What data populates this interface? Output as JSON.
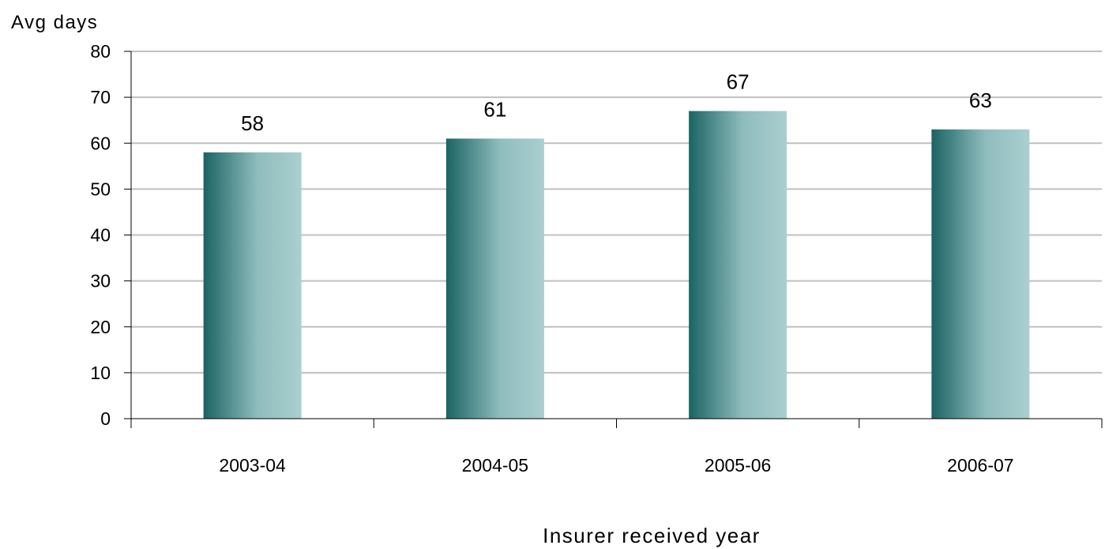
{
  "chart_data": {
    "type": "bar",
    "ylabel": "Avg days",
    "xlabel": "Insurer received year",
    "categories": [
      "2003-04",
      "2004-05",
      "2005-06",
      "2006-07"
    ],
    "values": [
      58,
      61,
      67,
      63
    ],
    "data_labels": [
      "58",
      "61",
      "67",
      "63"
    ],
    "ylim": [
      0,
      80
    ],
    "yticks": [
      0,
      10,
      20,
      30,
      40,
      50,
      60,
      70,
      80
    ],
    "grid": true,
    "legend": "none",
    "colors": {
      "bar_dark": "#1b6463",
      "bar_light": "#aacfd0",
      "grid": "#c0c0c0",
      "axis": "#000000"
    }
  }
}
